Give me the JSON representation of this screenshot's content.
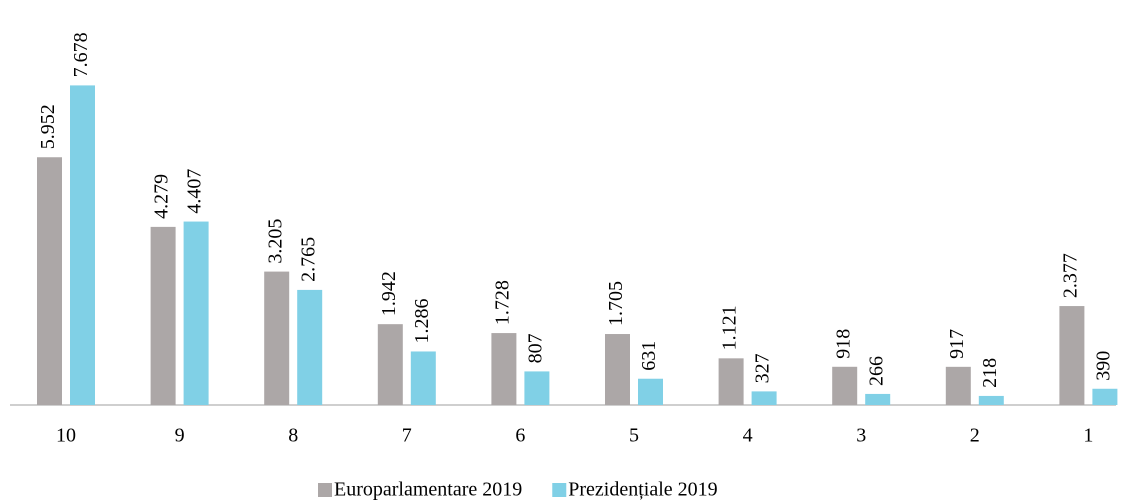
{
  "chart_data": {
    "type": "bar",
    "categories": [
      "10",
      "9",
      "8",
      "7",
      "6",
      "5",
      "4",
      "3",
      "2",
      "1"
    ],
    "series": [
      {
        "name": "Europarlamentare 2019",
        "color": "#aca7a7",
        "values": [
          5952,
          4279,
          3205,
          1942,
          1728,
          1705,
          1121,
          918,
          917,
          2377
        ],
        "value_labels": [
          "5.952",
          "4.279",
          "3.205",
          "1.942",
          "1.728",
          "1.705",
          "1.121",
          "918",
          "917",
          "2.377"
        ]
      },
      {
        "name": "Prezidențiale 2019",
        "color": "#80d0e6",
        "values": [
          7678,
          4407,
          2765,
          1286,
          807,
          631,
          327,
          266,
          218,
          390
        ],
        "value_labels": [
          "7.678",
          "4.407",
          "2.765",
          "1.286",
          "807",
          "631",
          "327",
          "266",
          "218",
          "390"
        ]
      }
    ],
    "ylim": [
      0,
      8000
    ]
  }
}
